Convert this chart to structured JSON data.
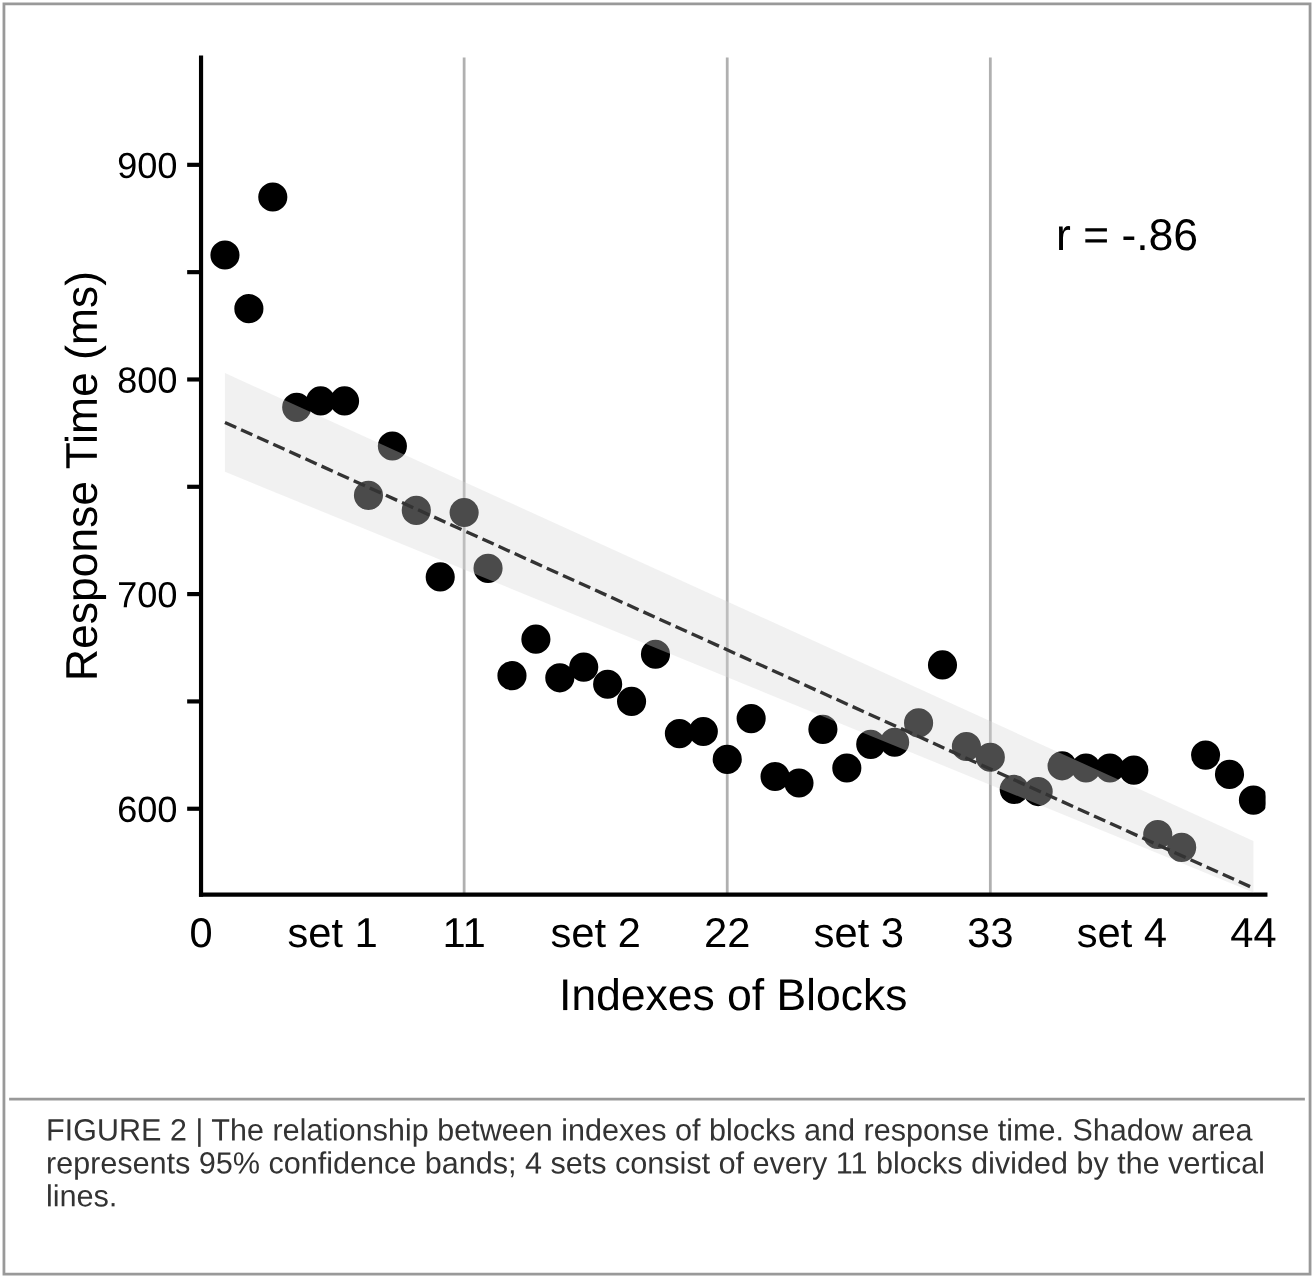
{
  "chart_data": {
    "type": "scatter",
    "xlabel": "Indexes of Blocks",
    "ylabel": "Response Time (ms)",
    "xlim": [
      0,
      44.5
    ],
    "ylim": [
      560,
      950
    ],
    "xticks": [
      0,
      {
        "value": 5.5,
        "label": "set 1"
      },
      11,
      {
        "value": 16.5,
        "label": "set 2"
      },
      22,
      {
        "value": 27.5,
        "label": "set 3"
      },
      33,
      {
        "value": 38.5,
        "label": "set 4"
      },
      44
    ],
    "yticks": [
      600,
      {
        "value": 650,
        "label": null
      },
      700,
      {
        "value": 750,
        "label": null
      },
      800,
      {
        "value": 850,
        "label": null
      },
      900
    ],
    "grid": false,
    "legend": false,
    "series": [
      {
        "marker": "circle",
        "color": "#000000",
        "x": [
          1,
          2,
          3,
          4,
          5,
          6,
          7,
          8,
          9,
          10,
          11,
          12,
          13,
          14,
          15,
          16,
          17,
          18,
          19,
          20,
          21,
          22,
          23,
          24,
          25,
          26,
          27,
          28,
          29,
          30,
          31,
          32,
          33,
          34,
          35,
          36,
          37,
          38,
          39,
          40,
          41,
          42,
          43,
          44
        ],
        "values": [
          858,
          833,
          885,
          787,
          790,
          790,
          746,
          769,
          739,
          708,
          738,
          712,
          662,
          679,
          661,
          666,
          658,
          650,
          672,
          635,
          636,
          623,
          642,
          615,
          612,
          637,
          619,
          630,
          631,
          640,
          667,
          629,
          624,
          609,
          608,
          620,
          619,
          619,
          618,
          588,
          582,
          625,
          616,
          604
        ]
      },
      {
        "type": "line",
        "color": "#333333",
        "line_style": "dashed",
        "x": [
          1,
          44
        ],
        "values": [
          780,
          563
        ],
        "lower": [
          757,
          561
        ],
        "upper": [
          803,
          585
        ]
      }
    ],
    "ref_lines": [
      {
        "axis": "x",
        "value": 11,
        "color": "#b0b0b0"
      },
      {
        "axis": "x",
        "value": 22,
        "color": "#b0b0b0"
      },
      {
        "axis": "x",
        "value": 33,
        "color": "#b0b0b0"
      }
    ],
    "annotations": [
      "r = -.86",
      "FIGURE 2 | The relationship between indexes of blocks and response time. Shadow area represents 95% confidence bands; 4 sets consist of every 11 blocks divided by the vertical lines."
    ]
  }
}
